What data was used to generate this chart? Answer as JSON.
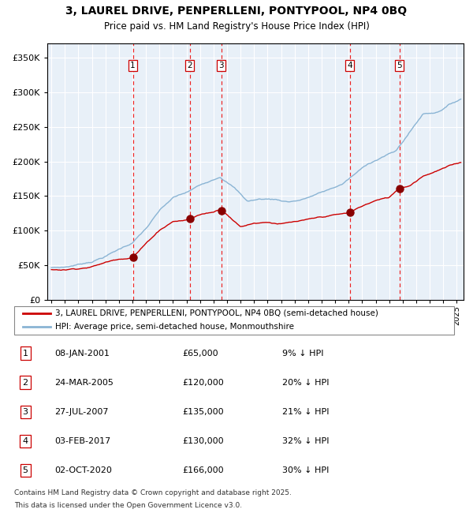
{
  "title": "3, LAUREL DRIVE, PENPERLLENI, PONTYPOOL, NP4 0BQ",
  "subtitle": "Price paid vs. HM Land Registry's House Price Index (HPI)",
  "legend_line1": "3, LAUREL DRIVE, PENPERLLENI, PONTYPOOL, NP4 0BQ (semi-detached house)",
  "legend_line2": "HPI: Average price, semi-detached house, Monmouthshire",
  "footer1": "Contains HM Land Registry data © Crown copyright and database right 2025.",
  "footer2": "This data is licensed under the Open Government Licence v3.0.",
  "transactions": [
    {
      "num": 1,
      "date": "08-JAN-2001",
      "price": 65000,
      "pct": "9%",
      "x_year": 2001.03,
      "dot_price": 65000
    },
    {
      "num": 2,
      "date": "24-MAR-2005",
      "price": 120000,
      "pct": "20%",
      "x_year": 2005.23,
      "dot_price": 120000
    },
    {
      "num": 3,
      "date": "27-JUL-2007",
      "price": 135000,
      "pct": "21%",
      "x_year": 2007.57,
      "dot_price": 135000
    },
    {
      "num": 4,
      "date": "03-FEB-2017",
      "price": 130000,
      "pct": "32%",
      "x_year": 2017.09,
      "dot_price": 130000
    },
    {
      "num": 5,
      "date": "02-OCT-2020",
      "price": 166000,
      "pct": "30%",
      "x_year": 2020.75,
      "dot_price": 166000
    }
  ],
  "hpi_color": "#8AB4D4",
  "price_color": "#CC0000",
  "dot_color": "#880000",
  "vline_color": "#EE2222",
  "plot_bg_color": "#E8F0F8",
  "grid_color": "#ffffff",
  "ylim": [
    0,
    370000
  ],
  "xlim_start": 1994.7,
  "xlim_end": 2025.5,
  "yticks": [
    0,
    50000,
    100000,
    150000,
    200000,
    250000,
    300000,
    350000
  ]
}
